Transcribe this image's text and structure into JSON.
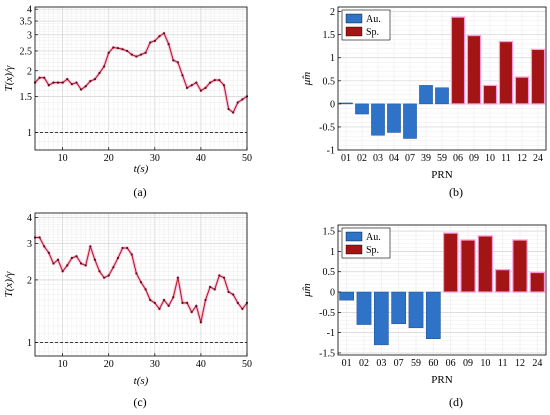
{
  "chart_data": [
    {
      "id": "a",
      "type": "line",
      "caption": "(a)",
      "xlabel": "t(s)",
      "ylabel": "T(x)/γ",
      "yscale": "log",
      "xlim": [
        4,
        50
      ],
      "ylim": [
        0.82,
        4.1
      ],
      "xticks": [
        "10",
        "20",
        "30",
        "40",
        "50"
      ],
      "yticks": [
        "1",
        "1.5",
        "2",
        "2.5",
        "3",
        "3.5",
        "4"
      ],
      "threshold": 1,
      "grid": true,
      "color": "#b22222",
      "x": [
        4,
        5,
        6,
        7,
        8,
        9,
        10,
        11,
        12,
        13,
        14,
        15,
        16,
        17,
        18,
        19,
        20,
        21,
        22,
        23,
        24,
        25,
        26,
        27,
        28,
        29,
        30,
        31,
        32,
        33,
        34,
        35,
        36,
        37,
        38,
        39,
        40,
        41,
        42,
        43,
        44,
        45,
        46,
        47,
        48,
        49,
        50
      ],
      "y": [
        1.75,
        1.85,
        1.85,
        1.7,
        1.75,
        1.75,
        1.75,
        1.82,
        1.72,
        1.75,
        1.62,
        1.68,
        1.78,
        1.82,
        1.95,
        2.1,
        2.45,
        2.6,
        2.58,
        2.55,
        2.5,
        2.4,
        2.35,
        2.4,
        2.45,
        2.75,
        2.8,
        2.95,
        3.05,
        2.7,
        2.25,
        2.2,
        1.9,
        1.65,
        1.7,
        1.75,
        1.6,
        1.65,
        1.75,
        1.8,
        1.8,
        1.7,
        1.3,
        1.25,
        1.4,
        1.45,
        1.5
      ]
    },
    {
      "id": "b",
      "type": "bar",
      "caption": "(b)",
      "xlabel": "PRN",
      "ylabel": "μ̂m",
      "ylim": [
        -1,
        2.1
      ],
      "yticks": [
        "-1",
        "-0.5",
        "0",
        "0.5",
        "1",
        "1.5",
        "2"
      ],
      "categories": [
        "01",
        "02",
        "03",
        "04",
        "07",
        "39",
        "59",
        "06",
        "09",
        "10",
        "11",
        "12",
        "24"
      ],
      "values": [
        0.02,
        -0.22,
        -0.68,
        -0.62,
        -0.75,
        0.4,
        0.35,
        1.88,
        1.48,
        0.4,
        1.35,
        0.58,
        1.18
      ],
      "groups": [
        "au",
        "au",
        "au",
        "au",
        "au",
        "au",
        "au",
        "sp",
        "sp",
        "sp",
        "sp",
        "sp",
        "sp"
      ],
      "legend": [
        {
          "key": "au",
          "label": "Au.",
          "color": "#2e73c8"
        },
        {
          "key": "sp",
          "label": "Sp.",
          "color": "#a31414"
        }
      ],
      "legend_position": "top-left",
      "grid": true
    },
    {
      "id": "c",
      "type": "line",
      "caption": "(c)",
      "xlabel": "t(s)",
      "ylabel": "T(x)/γ",
      "yscale": "log",
      "xlim": [
        4,
        50
      ],
      "ylim": [
        0.86,
        4.2
      ],
      "xticks": [
        "10",
        "20",
        "30",
        "40",
        "50"
      ],
      "yticks": [
        "1",
        "2",
        "3",
        "4"
      ],
      "threshold": 1,
      "grid": true,
      "color": "#b22222",
      "x": [
        4,
        5,
        6,
        7,
        8,
        9,
        10,
        11,
        12,
        13,
        14,
        15,
        16,
        17,
        18,
        19,
        20,
        21,
        22,
        23,
        24,
        25,
        26,
        27,
        28,
        29,
        30,
        31,
        32,
        33,
        34,
        35,
        36,
        37,
        38,
        39,
        40,
        41,
        42,
        43,
        44,
        45,
        46,
        47,
        48,
        49,
        50
      ],
      "y": [
        3.2,
        3.2,
        2.9,
        2.7,
        2.4,
        2.5,
        2.2,
        2.35,
        2.55,
        2.6,
        2.4,
        2.35,
        2.9,
        2.5,
        2.2,
        2.05,
        2.1,
        2.3,
        2.55,
        2.85,
        2.85,
        2.65,
        2.15,
        1.95,
        1.8,
        1.6,
        1.55,
        1.45,
        1.6,
        1.5,
        1.65,
        2.05,
        1.55,
        1.55,
        1.4,
        1.5,
        1.25,
        1.6,
        1.85,
        1.8,
        2.1,
        2.05,
        1.75,
        1.7,
        1.55,
        1.45,
        1.55
      ]
    },
    {
      "id": "d",
      "type": "bar",
      "caption": "(d)",
      "xlabel": "PRN",
      "ylabel": "μ̂m",
      "ylim": [
        -1.55,
        1.65
      ],
      "yticks": [
        "-1.5",
        "-1",
        "-0.5",
        "0",
        "0.5",
        "1",
        "1.5"
      ],
      "categories": [
        "01",
        "02",
        "03",
        "07",
        "59",
        "60",
        "06",
        "09",
        "10",
        "11",
        "12",
        "24"
      ],
      "values": [
        -0.2,
        -0.8,
        -1.3,
        -0.78,
        -0.88,
        -1.15,
        1.45,
        1.28,
        1.38,
        0.55,
        1.28,
        0.48
      ],
      "groups": [
        "au",
        "au",
        "au",
        "au",
        "au",
        "au",
        "sp",
        "sp",
        "sp",
        "sp",
        "sp",
        "sp"
      ],
      "legend": [
        {
          "key": "au",
          "label": "Au.",
          "color": "#2e73c8"
        },
        {
          "key": "sp",
          "label": "Sp.",
          "color": "#a31414"
        }
      ],
      "legend_position": "top-left",
      "grid": true
    }
  ]
}
